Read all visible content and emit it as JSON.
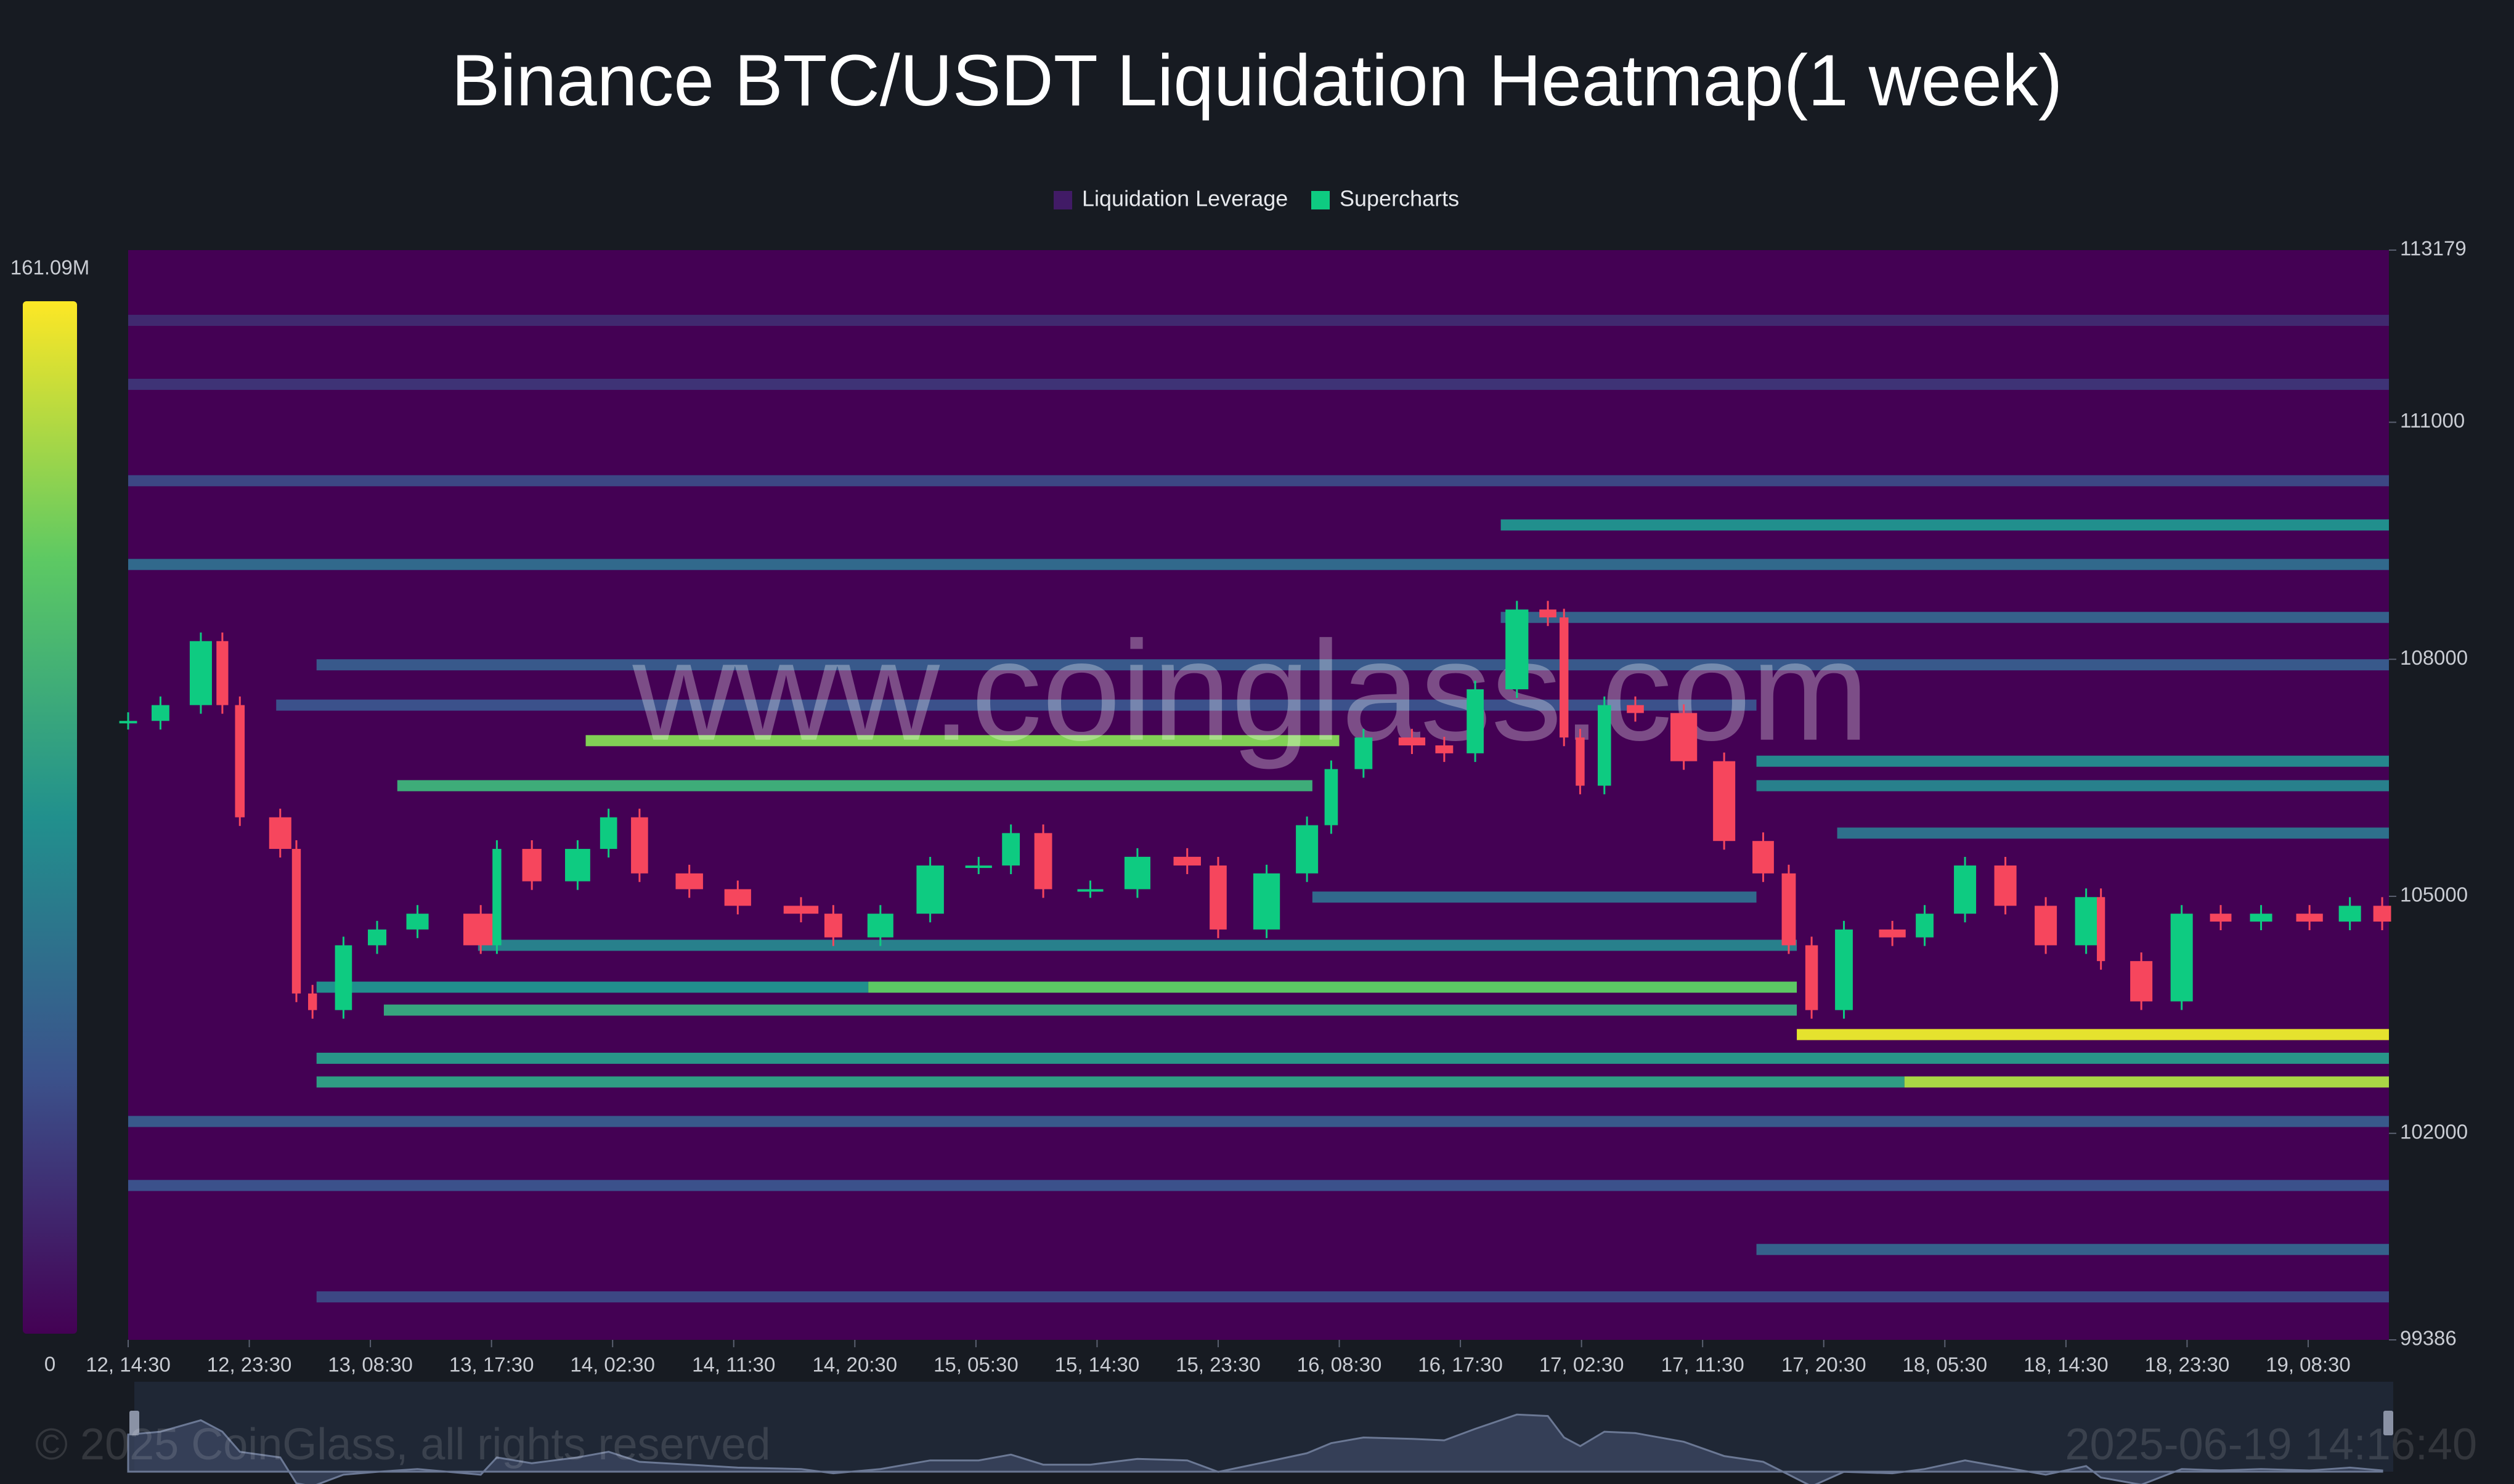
{
  "chart_data": {
    "type": "heatmap",
    "title": "Binance BTC/USDT Liquidation Heatmap(1 week)",
    "watermark": "www.coinglass.com",
    "copyright": "© 2025 CoinGlass, all rights reserved",
    "timestamp": "2025-06-19 14:16:40",
    "xlim": [
      0,
      168
    ],
    "xticks": [
      {
        "value": 0,
        "label": "12, 14:30"
      },
      {
        "value": 9,
        "label": "12, 23:30"
      },
      {
        "value": 18,
        "label": "13, 08:30"
      },
      {
        "value": 27,
        "label": "13, 17:30"
      },
      {
        "value": 36,
        "label": "14, 02:30"
      },
      {
        "value": 45,
        "label": "14, 11:30"
      },
      {
        "value": 54,
        "label": "14, 20:30"
      },
      {
        "value": 63,
        "label": "15, 05:30"
      },
      {
        "value": 72,
        "label": "15, 14:30"
      },
      {
        "value": 81,
        "label": "15, 23:30"
      },
      {
        "value": 90,
        "label": "16, 08:30"
      },
      {
        "value": 99,
        "label": "16, 17:30"
      },
      {
        "value": 108,
        "label": "17, 02:30"
      },
      {
        "value": 117,
        "label": "17, 11:30"
      },
      {
        "value": 126,
        "label": "17, 20:30"
      },
      {
        "value": 135,
        "label": "18, 05:30"
      },
      {
        "value": 144,
        "label": "18, 14:30"
      },
      {
        "value": 153,
        "label": "18, 23:30"
      },
      {
        "value": 162,
        "label": "19, 08:30"
      }
    ],
    "ylim": [
      99386,
      113179
    ],
    "yticks": [
      99386,
      102000,
      105000,
      108000,
      111000,
      113179
    ],
    "clim": [
      0,
      161.09
    ],
    "cticks": [
      0,
      {
        "value": 161.09,
        "label": "161.09M"
      }
    ],
    "colors": [
      "#440154",
      "#3b528b",
      "#21908d",
      "#5dc963",
      "#fde725"
    ],
    "heatmap": {
      "name": "Liquidation Leverage",
      "levels": [
        112290,
        111480,
        110260,
        109200,
        109700,
        108530,
        107930,
        107420,
        106400,
        106400,
        106970,
        106710,
        105800,
        104990,
        104380,
        103560,
        103850,
        103850,
        103250,
        102950,
        102650,
        102650,
        102150,
        101340,
        100530,
        99930
      ],
      "starts": [
        0,
        0,
        0,
        0,
        102,
        102,
        14,
        11,
        20,
        121,
        34,
        121,
        127,
        88,
        26,
        19,
        14,
        55,
        124,
        14,
        14,
        132,
        0,
        0,
        121,
        14
      ],
      "ends": [
        168,
        168,
        168,
        168,
        168,
        168,
        168,
        121,
        88,
        168,
        90,
        168,
        168,
        121,
        124,
        124,
        55,
        124,
        168,
        168,
        132,
        168,
        168,
        168,
        168,
        168
      ],
      "values": [
        20,
        25,
        35,
        55,
        80,
        50,
        45,
        40,
        100,
        70,
        130,
        75,
        60,
        55,
        70,
        95,
        80,
        120,
        155,
        85,
        90,
        140,
        45,
        40,
        50,
        35
      ]
    },
    "x": [
      0,
      2.4,
      5.4,
      7,
      8.3,
      11.3,
      12.5,
      13.7,
      16,
      18.5,
      21.5,
      26.2,
      27.4,
      30,
      33.4,
      35.7,
      38,
      41.7,
      45.3,
      50,
      52.4,
      55.9,
      59.6,
      63.2,
      65.6,
      68,
      71.5,
      75,
      78.7,
      81,
      84.6,
      87.6,
      89.4,
      91.8,
      95.4,
      97.8,
      100.1,
      103.2,
      105.5,
      106.7,
      107.9,
      109.7,
      112,
      115.6,
      118.6,
      121.5,
      123.4,
      125.1,
      127.5,
      131.1,
      133.5,
      136.5,
      139.5,
      142.5,
      145.5,
      146.6,
      149.6,
      152.6,
      155.5,
      158.5,
      162.1,
      165.1,
      167.5
    ],
    "series": [
      {
        "name": "Supercharts",
        "color": "#0ecb81",
        "down_color": "#f6465d",
        "values": [
          107220,
          107420,
          108230,
          107420,
          106000,
          105600,
          103770,
          103560,
          104380,
          104580,
          104780,
          104380,
          105600,
          105190,
          105600,
          106000,
          105290,
          105090,
          104880,
          104780,
          104480,
          104780,
          105390,
          105390,
          105800,
          105090,
          105090,
          105500,
          105390,
          104580,
          105290,
          105900,
          106610,
          107010,
          106910,
          106810,
          107620,
          108630,
          108530,
          107010,
          106400,
          107420,
          107320,
          106710,
          105700,
          105290,
          104380,
          103560,
          104580,
          104480,
          104780,
          105390,
          104880,
          104380,
          104990,
          104180,
          103670,
          104780,
          104680,
          104780,
          104680,
          104880,
          104680
        ]
      }
    ]
  }
}
